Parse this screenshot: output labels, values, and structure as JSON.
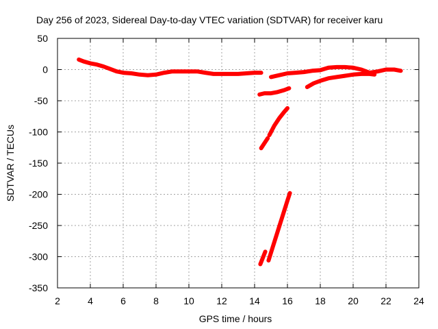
{
  "chart_data": {
    "type": "scatter",
    "title": "Day 256 of 2023, Sidereal Day-to-day VTEC variation (SDTVAR) for receiver karu",
    "xlabel": "GPS time / hours",
    "ylabel": "SDTVAR / TECUs",
    "xlim": [
      2,
      24
    ],
    "ylim": [
      -350,
      50
    ],
    "xticks": [
      2,
      4,
      6,
      8,
      10,
      12,
      14,
      16,
      18,
      20,
      22,
      24
    ],
    "yticks": [
      50,
      0,
      -50,
      -100,
      -150,
      -200,
      -250,
      -300,
      -350
    ],
    "xtick_labels": [
      "2",
      "4",
      "6",
      "8",
      "10",
      "12",
      "14",
      "16",
      "18",
      "20",
      "22",
      "24"
    ],
    "ytick_labels": [
      "50",
      "0",
      "-50",
      "-100",
      "-150",
      "-200",
      "-250",
      "-300",
      "-350"
    ],
    "grid": true,
    "color": "#ff0000",
    "series": [
      {
        "name": "main-track",
        "x": [
          3.3,
          3.6,
          4.0,
          4.4,
          4.8,
          5.2,
          5.6,
          6.0,
          6.5,
          7.0,
          7.5,
          8.0,
          8.5,
          9.0,
          9.5,
          10.0,
          10.5,
          11.0,
          11.5,
          12.0,
          12.5,
          13.0,
          13.5,
          14.0,
          14.4
        ],
        "y": [
          16,
          13,
          10,
          8,
          5,
          1,
          -3,
          -5,
          -6,
          -8,
          -9,
          -8,
          -5,
          -3,
          -3,
          -3,
          -3,
          -5,
          -7,
          -7,
          -7,
          -7,
          -6,
          -5,
          -5
        ]
      },
      {
        "name": "upper-track-afternoon",
        "x": [
          15.0,
          15.5,
          16.0,
          16.5,
          17.0,
          17.5,
          18.0,
          18.5,
          19.0,
          19.5,
          20.0,
          20.5,
          21.0,
          21.5,
          22.0,
          22.5,
          22.9
        ],
        "y": [
          -12,
          -9,
          -6,
          -5,
          -4,
          -2,
          -1,
          3,
          4,
          4,
          3,
          0,
          -5,
          -3,
          0,
          0,
          -2
        ]
      },
      {
        "name": "lower-track-afternoon",
        "x": [
          17.2,
          17.6,
          18.0,
          18.5,
          19.0,
          19.5,
          20.0,
          20.5,
          21.0,
          21.3
        ],
        "y": [
          -28,
          -22,
          -18,
          -14,
          -12,
          -10,
          -8,
          -7,
          -7,
          -8
        ]
      },
      {
        "name": "cluster-minus40",
        "x": [
          14.3,
          14.6,
          15.0,
          15.4,
          15.8,
          16.1
        ],
        "y": [
          -40,
          -38,
          -38,
          -36,
          -33,
          -30
        ]
      },
      {
        "name": "steep-segment-1",
        "x": [
          14.4,
          14.6,
          14.8
        ],
        "y": [
          -126,
          -118,
          -110
        ]
      },
      {
        "name": "steep-segment-2",
        "x": [
          14.9,
          15.2,
          15.5,
          15.8,
          16.0
        ],
        "y": [
          -105,
          -90,
          -78,
          -68,
          -62
        ]
      },
      {
        "name": "deep-segment-1",
        "x": [
          14.35,
          14.5,
          14.65
        ],
        "y": [
          -312,
          -302,
          -292
        ]
      },
      {
        "name": "deep-segment-2",
        "x": [
          14.85,
          15.1,
          15.4,
          15.7,
          16.0,
          16.15
        ],
        "y": [
          -306,
          -285,
          -260,
          -235,
          -210,
          -198
        ]
      }
    ]
  }
}
